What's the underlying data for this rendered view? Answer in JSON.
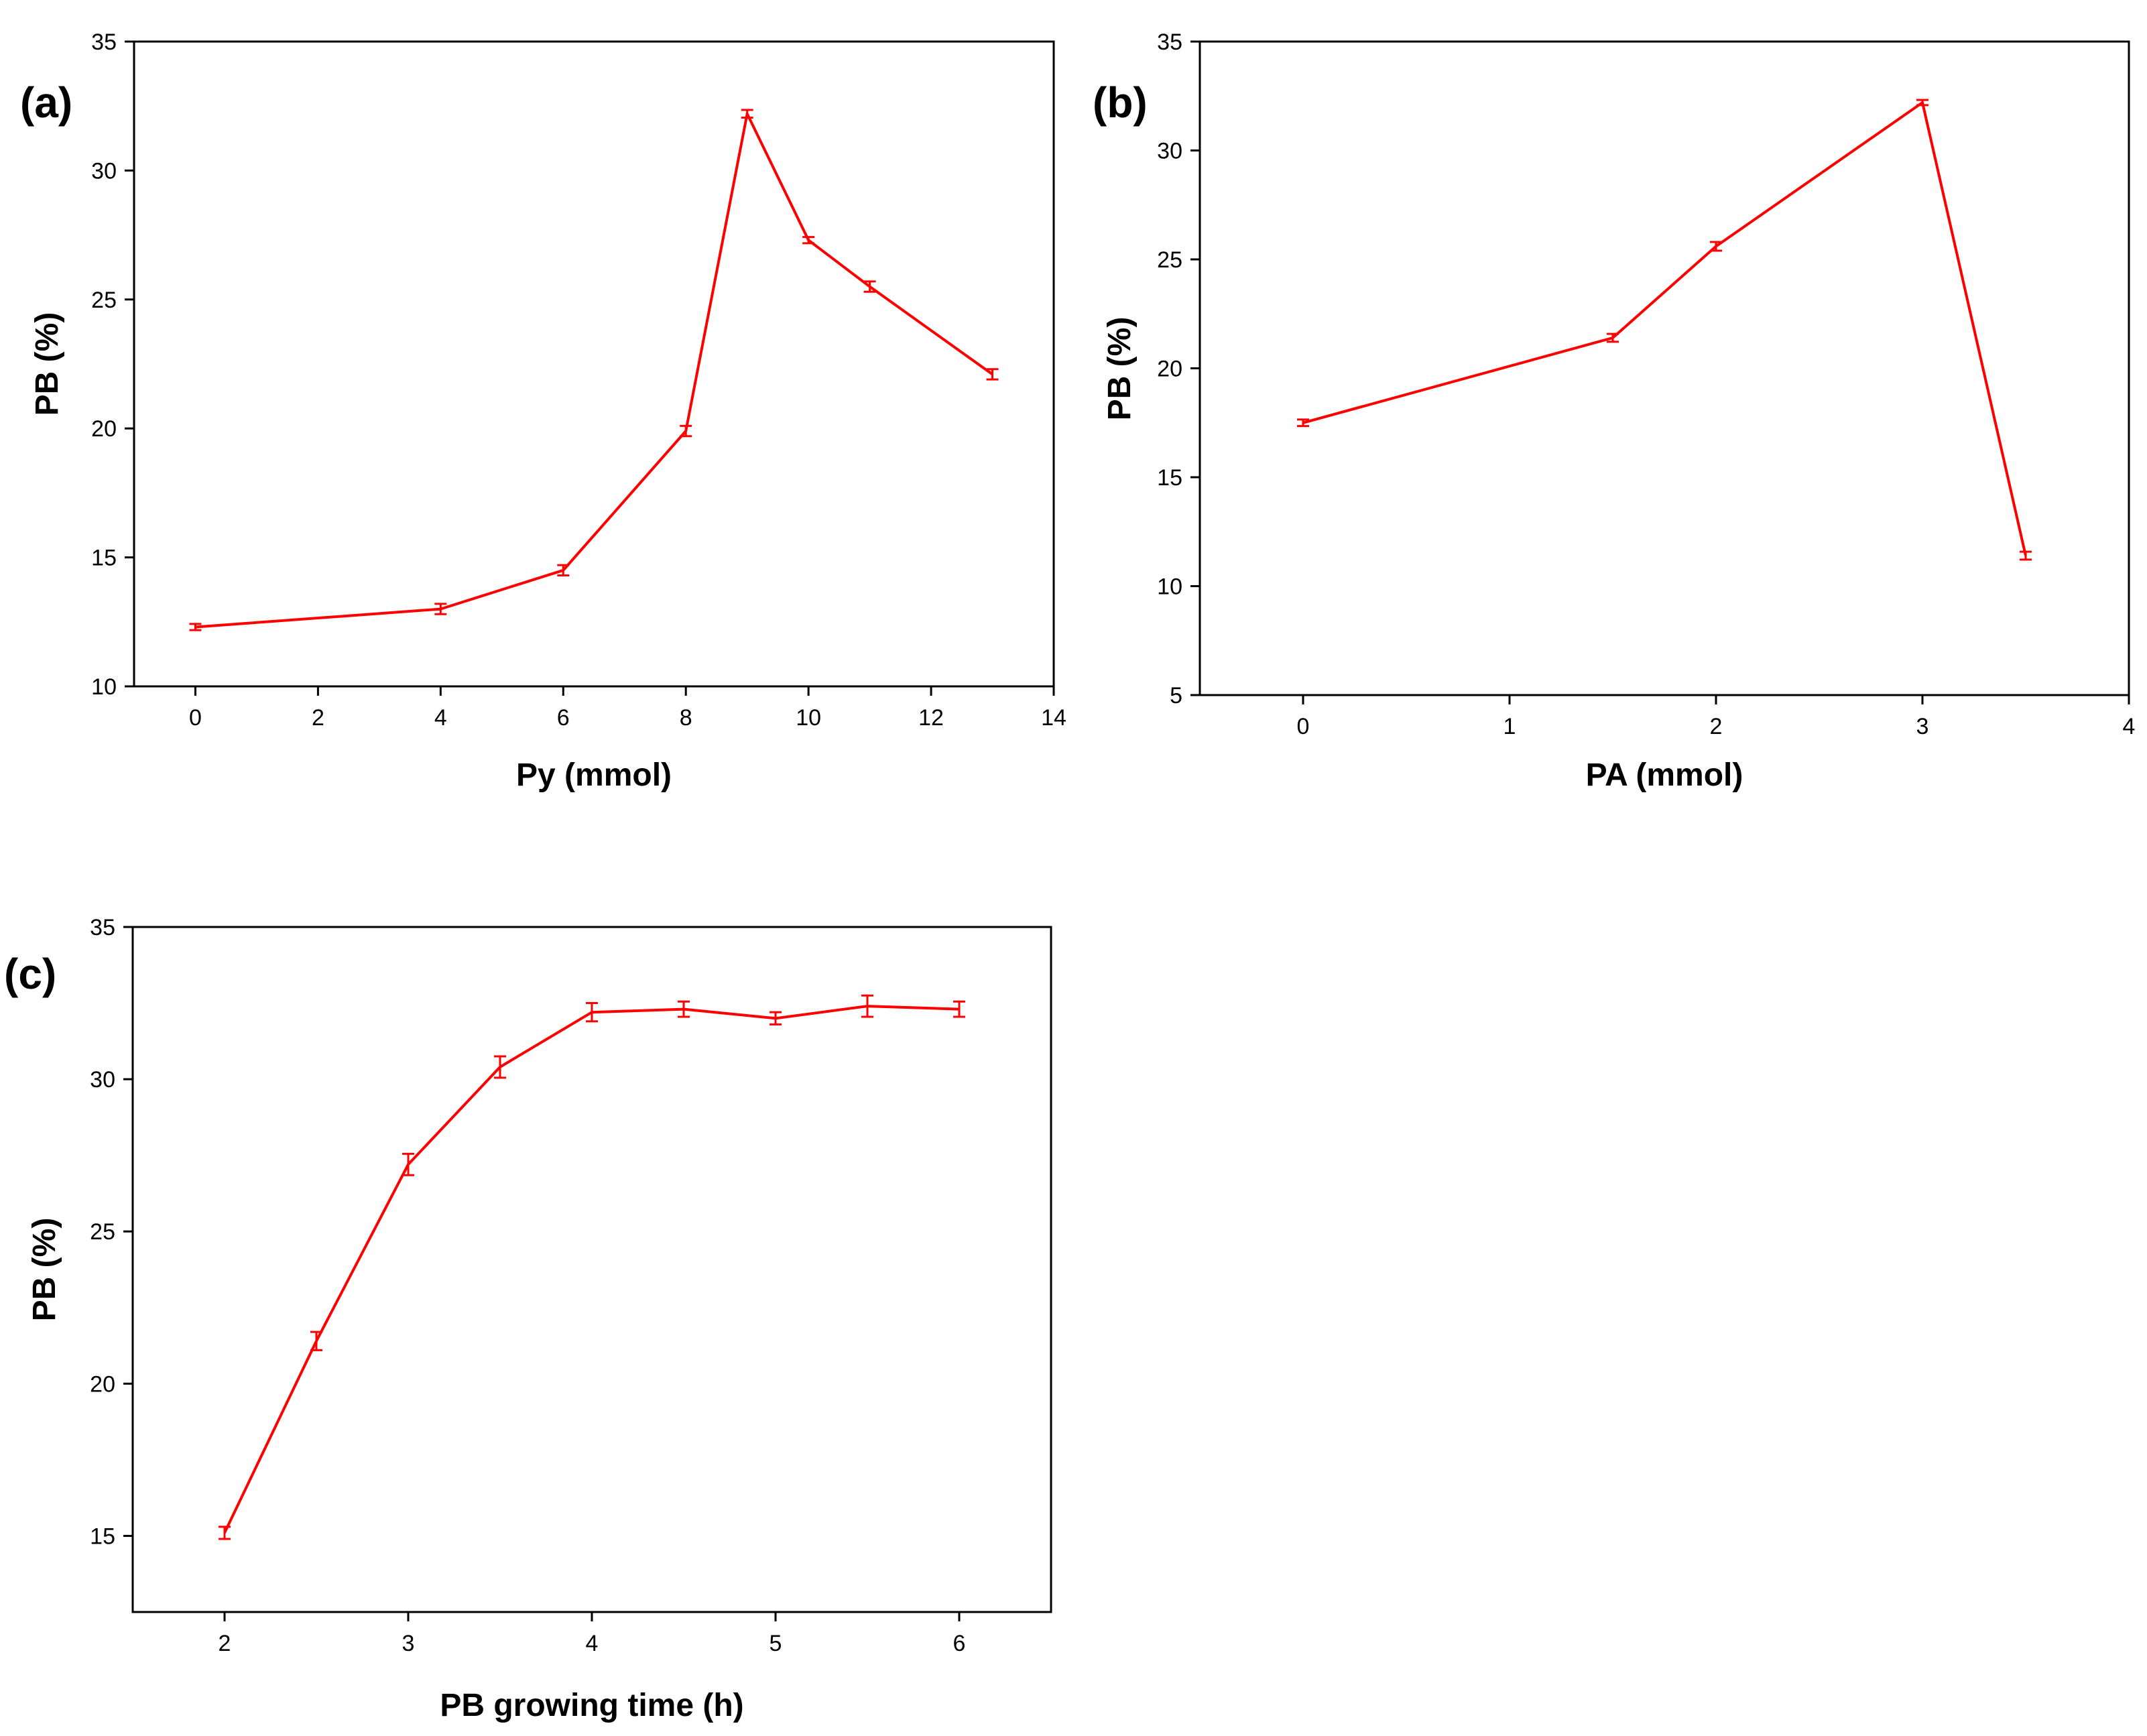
{
  "colors": {
    "series": "#ff0000",
    "axis": "#000000"
  },
  "chart_data": [
    {
      "panel": "(a)",
      "type": "line",
      "title": "",
      "xlabel": "Py (mmol)",
      "ylabel": "PB (%)",
      "xlim": [
        -1,
        14
      ],
      "ylim": [
        10,
        35
      ],
      "xticks": [
        0,
        2,
        4,
        6,
        8,
        10,
        12,
        14
      ],
      "yticks": [
        10,
        15,
        20,
        25,
        30,
        35
      ],
      "grid": false,
      "series": [
        {
          "name": "PB",
          "x": [
            0,
            4,
            6,
            8,
            9,
            10,
            11,
            13
          ],
          "y": [
            12.3,
            13.0,
            14.5,
            19.9,
            32.2,
            27.3,
            25.5,
            22.1
          ],
          "err": [
            0.12,
            0.2,
            0.2,
            0.2,
            0.15,
            0.12,
            0.2,
            0.2
          ]
        }
      ]
    },
    {
      "panel": "(b)",
      "type": "line",
      "title": "",
      "xlabel": "PA (mmol)",
      "ylabel": "PB (%)",
      "xlim": [
        -0.5,
        4
      ],
      "ylim": [
        5,
        35
      ],
      "xticks": [
        0,
        1,
        2,
        3,
        4
      ],
      "yticks": [
        5,
        10,
        15,
        20,
        25,
        30,
        35
      ],
      "grid": false,
      "series": [
        {
          "name": "PB",
          "x": [
            0,
            1.5,
            2,
            3,
            3.5
          ],
          "y": [
            17.5,
            21.4,
            25.6,
            32.2,
            11.4
          ],
          "err": [
            0.15,
            0.18,
            0.2,
            0.12,
            0.18
          ]
        }
      ]
    },
    {
      "panel": "(c)",
      "type": "line",
      "title": "",
      "xlabel": "PB growing time (h)",
      "ylabel": "PB (%)",
      "xlim": [
        1.5,
        6.5
      ],
      "ylim": [
        12.5,
        35
      ],
      "xticks": [
        2,
        3,
        4,
        5,
        6
      ],
      "yticks": [
        15,
        20,
        25,
        30,
        35
      ],
      "grid": false,
      "series": [
        {
          "name": "PB",
          "x": [
            2,
            2.5,
            3,
            3.5,
            4,
            4.5,
            5,
            5.5,
            6
          ],
          "y": [
            15.1,
            21.4,
            27.2,
            30.4,
            32.2,
            32.3,
            32.0,
            32.4,
            32.3
          ],
          "err": [
            0.2,
            0.3,
            0.35,
            0.35,
            0.3,
            0.25,
            0.2,
            0.35,
            0.25
          ]
        }
      ]
    }
  ]
}
